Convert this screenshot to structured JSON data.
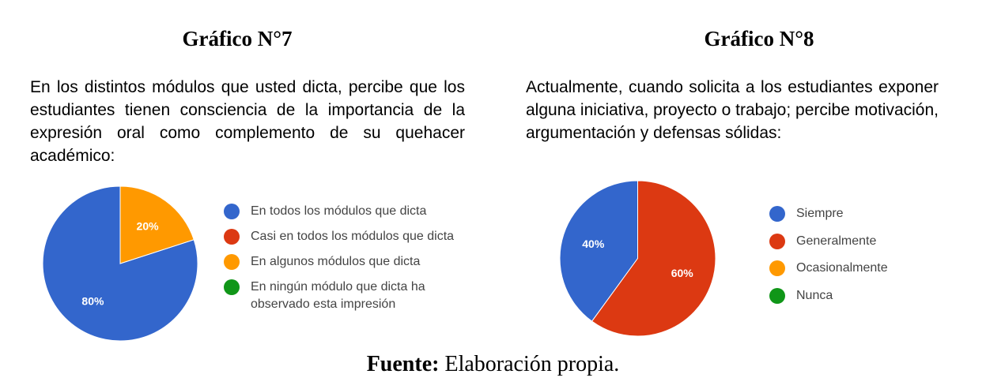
{
  "source": {
    "label": "Fuente:",
    "text": "Elaboración propia."
  },
  "chart_data": [
    {
      "type": "pie",
      "title": "Gráfico N°7",
      "subtitle": "En los distintos módulos que usted dicta, percibe que los estudiantes tienen consciencia de la importancia de la expresión oral como complemento de su quehacer académico:",
      "categories": [
        "En todos los módulos que dicta",
        "Casi en todos los módulos que dicta",
        "En algunos módulos que dicta",
        "En ningún módulo que dicta ha observado esta impresión"
      ],
      "values": [
        80,
        0,
        20,
        0
      ],
      "data_labels": [
        "80%",
        "",
        "20%",
        ""
      ],
      "colors": [
        "#3366cc",
        "#dc3912",
        "#ff9900",
        "#109618"
      ],
      "legend": "right"
    },
    {
      "type": "pie",
      "title": "Gráfico N°8",
      "subtitle": "Actualmente, cuando solicita a los estudiantes exponer alguna iniciativa, proyecto o trabajo; percibe motivación, argumentación y defensas sólidas:",
      "categories": [
        "Siempre",
        "Generalmente",
        "Ocasionalmente",
        "Nunca"
      ],
      "values": [
        40,
        60,
        0,
        0
      ],
      "data_labels": [
        "40%",
        "60%",
        "",
        ""
      ],
      "colors": [
        "#3366cc",
        "#dc3912",
        "#ff9900",
        "#109618"
      ],
      "legend": "right"
    }
  ]
}
